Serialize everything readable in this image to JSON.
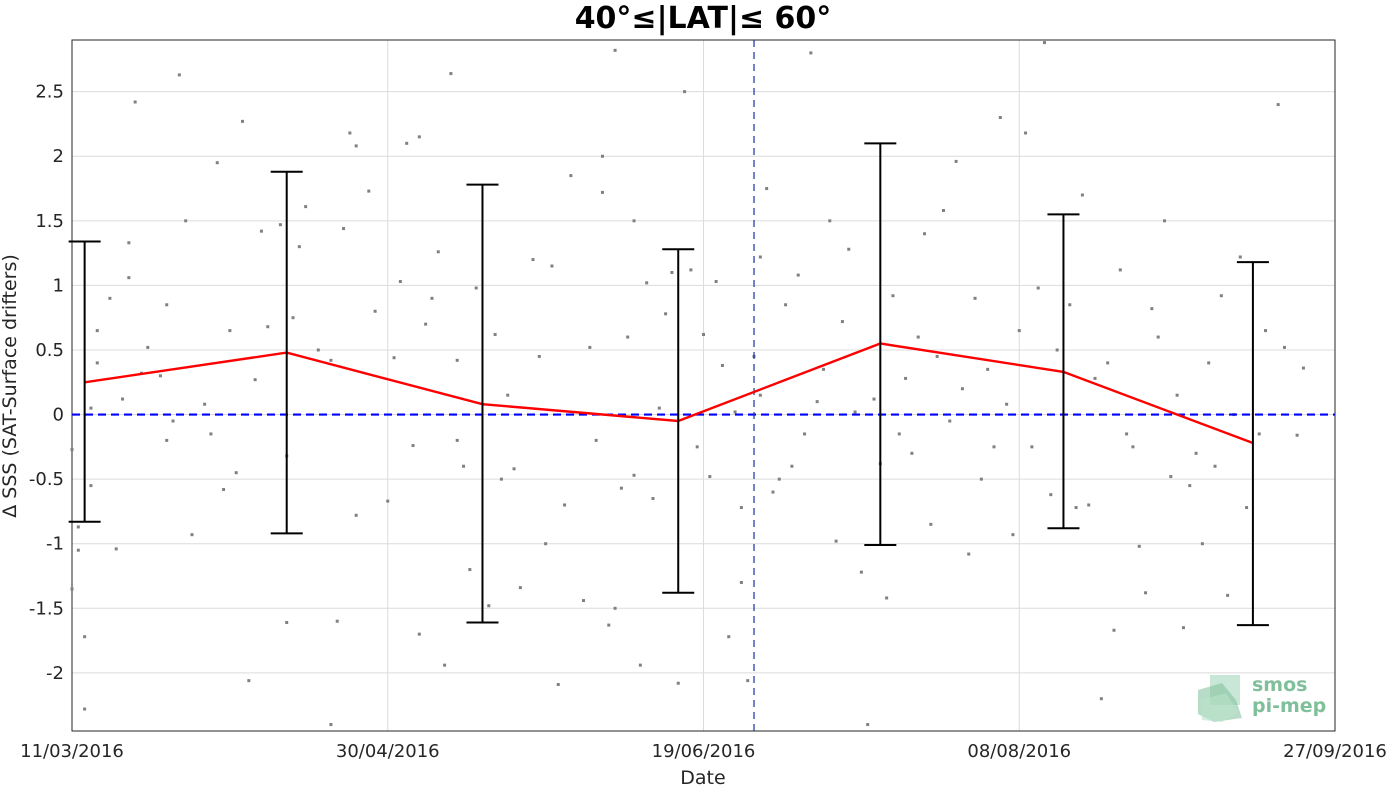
{
  "chart_data": {
    "type": "line",
    "title": "40°≤|LAT|≤ 60°",
    "xlabel": "Date",
    "ylabel": "Δ SSS (SAT-Surface drifters)",
    "xlim": [
      "2016-03-11",
      "2016-09-27"
    ],
    "ylim": [
      -2.45,
      2.9
    ],
    "x_ticks": [
      "11/03/2016",
      "30/04/2016",
      "19/06/2016",
      "08/08/2016",
      "27/09/2016"
    ],
    "y_ticks": [
      "-2",
      "-1.5",
      "-1",
      "-0.5",
      "0",
      "0.5",
      "1",
      "1.5",
      "2",
      "2.5"
    ],
    "grid": true,
    "series": [
      {
        "type": "line",
        "color": "#ff0000",
        "points": [
          {
            "x": "2016-03-13",
            "y": 0.25,
            "ylow": -0.83,
            "yhigh": 1.34
          },
          {
            "x": "2016-04-14",
            "y": 0.48,
            "ylow": -0.92,
            "yhigh": 1.88
          },
          {
            "x": "2016-05-15",
            "y": 0.08,
            "ylow": -1.61,
            "yhigh": 1.78
          },
          {
            "x": "2016-06-15",
            "y": -0.05,
            "ylow": -1.38,
            "yhigh": 1.28
          },
          {
            "x": "2016-07-17",
            "y": 0.55,
            "ylow": -1.01,
            "yhigh": 2.1
          },
          {
            "x": "2016-08-15",
            "y": 0.33,
            "ylow": -0.88,
            "yhigh": 1.55
          },
          {
            "x": "2016-09-14",
            "y": -0.22,
            "ylow": -1.63,
            "yhigh": 1.18
          }
        ]
      }
    ],
    "reference_line": {
      "y": 0,
      "color": "#0000ff",
      "style": "dashed"
    },
    "vertical_line": {
      "x": "2016-06-27",
      "color": "#1c2fa0",
      "style": "dashed"
    },
    "scatter": {
      "color": "#808080",
      "points": [
        {
          "x": "2016-03-11",
          "y": -0.27
        },
        {
          "x": "2016-03-11",
          "y": -1.35
        },
        {
          "x": "2016-03-12",
          "y": -0.87
        },
        {
          "x": "2016-03-12",
          "y": -1.05
        },
        {
          "x": "2016-03-13",
          "y": -2.28
        },
        {
          "x": "2016-03-13",
          "y": -1.72
        },
        {
          "x": "2016-03-14",
          "y": 0.05
        },
        {
          "x": "2016-03-14",
          "y": -0.55
        },
        {
          "x": "2016-03-15",
          "y": 0.4
        },
        {
          "x": "2016-03-15",
          "y": 0.65
        },
        {
          "x": "2016-03-17",
          "y": 0.9
        },
        {
          "x": "2016-03-18",
          "y": -1.04
        },
        {
          "x": "2016-03-19",
          "y": 0.12
        },
        {
          "x": "2016-03-20",
          "y": 1.06
        },
        {
          "x": "2016-03-20",
          "y": 1.33
        },
        {
          "x": "2016-03-21",
          "y": 2.42
        },
        {
          "x": "2016-03-22",
          "y": 0.32
        },
        {
          "x": "2016-03-23",
          "y": 0.52
        },
        {
          "x": "2016-03-25",
          "y": 0.3
        },
        {
          "x": "2016-03-26",
          "y": 0.85
        },
        {
          "x": "2016-03-26",
          "y": -0.2
        },
        {
          "x": "2016-03-27",
          "y": -0.05
        },
        {
          "x": "2016-03-28",
          "y": 2.63
        },
        {
          "x": "2016-03-29",
          "y": 1.5
        },
        {
          "x": "2016-03-30",
          "y": -0.93
        },
        {
          "x": "2016-04-01",
          "y": 0.08
        },
        {
          "x": "2016-04-02",
          "y": -0.15
        },
        {
          "x": "2016-04-03",
          "y": 1.95
        },
        {
          "x": "2016-04-04",
          "y": -0.58
        },
        {
          "x": "2016-04-05",
          "y": 0.65
        },
        {
          "x": "2016-04-06",
          "y": -0.45
        },
        {
          "x": "2016-04-07",
          "y": 2.27
        },
        {
          "x": "2016-04-08",
          "y": -2.06
        },
        {
          "x": "2016-04-09",
          "y": 0.27
        },
        {
          "x": "2016-04-10",
          "y": 1.42
        },
        {
          "x": "2016-04-11",
          "y": 0.68
        },
        {
          "x": "2016-04-13",
          "y": 1.47
        },
        {
          "x": "2016-04-14",
          "y": -1.61
        },
        {
          "x": "2016-04-14",
          "y": -0.32
        },
        {
          "x": "2016-04-15",
          "y": 0.75
        },
        {
          "x": "2016-04-16",
          "y": 1.3
        },
        {
          "x": "2016-04-17",
          "y": 1.61
        },
        {
          "x": "2016-04-19",
          "y": 0.5
        },
        {
          "x": "2016-04-21",
          "y": -2.4
        },
        {
          "x": "2016-04-21",
          "y": 0.42
        },
        {
          "x": "2016-04-22",
          "y": -1.6
        },
        {
          "x": "2016-04-23",
          "y": 1.44
        },
        {
          "x": "2016-04-24",
          "y": 2.18
        },
        {
          "x": "2016-04-25",
          "y": -0.78
        },
        {
          "x": "2016-04-25",
          "y": 2.08
        },
        {
          "x": "2016-04-27",
          "y": 1.73
        },
        {
          "x": "2016-04-28",
          "y": 0.8
        },
        {
          "x": "2016-04-30",
          "y": -0.67
        },
        {
          "x": "2016-05-01",
          "y": 0.44
        },
        {
          "x": "2016-05-02",
          "y": 1.03
        },
        {
          "x": "2016-05-03",
          "y": 2.1
        },
        {
          "x": "2016-05-04",
          "y": -0.24
        },
        {
          "x": "2016-05-05",
          "y": -1.7
        },
        {
          "x": "2016-05-05",
          "y": 2.15
        },
        {
          "x": "2016-05-06",
          "y": 0.7
        },
        {
          "x": "2016-05-07",
          "y": 0.9
        },
        {
          "x": "2016-05-08",
          "y": 1.26
        },
        {
          "x": "2016-05-09",
          "y": -1.94
        },
        {
          "x": "2016-05-10",
          "y": 2.64
        },
        {
          "x": "2016-05-11",
          "y": -0.2
        },
        {
          "x": "2016-05-11",
          "y": 0.42
        },
        {
          "x": "2016-05-12",
          "y": -0.4
        },
        {
          "x": "2016-05-13",
          "y": -1.2
        },
        {
          "x": "2016-05-14",
          "y": 0.98
        },
        {
          "x": "2016-05-16",
          "y": -1.48
        },
        {
          "x": "2016-05-17",
          "y": 0.62
        },
        {
          "x": "2016-05-18",
          "y": -0.5
        },
        {
          "x": "2016-05-19",
          "y": 0.15
        },
        {
          "x": "2016-05-20",
          "y": -0.42
        },
        {
          "x": "2016-05-21",
          "y": -1.34
        },
        {
          "x": "2016-05-23",
          "y": 1.2
        },
        {
          "x": "2016-05-24",
          "y": 0.45
        },
        {
          "x": "2016-05-25",
          "y": -1.0
        },
        {
          "x": "2016-05-26",
          "y": 1.15
        },
        {
          "x": "2016-05-27",
          "y": -2.09
        },
        {
          "x": "2016-05-28",
          "y": -0.7
        },
        {
          "x": "2016-05-29",
          "y": 1.85
        },
        {
          "x": "2016-05-31",
          "y": -1.44
        },
        {
          "x": "2016-06-01",
          "y": 0.52
        },
        {
          "x": "2016-06-02",
          "y": -0.2
        },
        {
          "x": "2016-06-03",
          "y": 2.0
        },
        {
          "x": "2016-06-03",
          "y": 1.72
        },
        {
          "x": "2016-06-04",
          "y": -1.63
        },
        {
          "x": "2016-06-05",
          "y": -1.5
        },
        {
          "x": "2016-06-05",
          "y": 2.82
        },
        {
          "x": "2016-06-06",
          "y": -0.57
        },
        {
          "x": "2016-06-07",
          "y": 0.6
        },
        {
          "x": "2016-06-08",
          "y": -0.47
        },
        {
          "x": "2016-06-08",
          "y": 1.5
        },
        {
          "x": "2016-06-09",
          "y": -1.94
        },
        {
          "x": "2016-06-10",
          "y": 1.02
        },
        {
          "x": "2016-06-11",
          "y": -0.65
        },
        {
          "x": "2016-06-12",
          "y": 0.05
        },
        {
          "x": "2016-06-13",
          "y": 0.78
        },
        {
          "x": "2016-06-14",
          "y": 1.1
        },
        {
          "x": "2016-06-15",
          "y": -2.08
        },
        {
          "x": "2016-06-16",
          "y": 2.5
        },
        {
          "x": "2016-06-17",
          "y": 1.12
        },
        {
          "x": "2016-06-18",
          "y": -0.25
        },
        {
          "x": "2016-06-19",
          "y": 0.62
        },
        {
          "x": "2016-06-20",
          "y": -0.48
        },
        {
          "x": "2016-06-21",
          "y": 1.03
        },
        {
          "x": "2016-06-22",
          "y": 0.38
        },
        {
          "x": "2016-06-23",
          "y": -1.72
        },
        {
          "x": "2016-06-24",
          "y": 0.02
        },
        {
          "x": "2016-06-25",
          "y": -1.3
        },
        {
          "x": "2016-06-25",
          "y": -0.72
        },
        {
          "x": "2016-06-26",
          "y": -2.06
        },
        {
          "x": "2016-06-27",
          "y": 0.45
        },
        {
          "x": "2016-06-28",
          "y": 1.22
        },
        {
          "x": "2016-06-28",
          "y": 0.15
        },
        {
          "x": "2016-06-29",
          "y": 1.75
        },
        {
          "x": "2016-06-30",
          "y": -0.6
        },
        {
          "x": "2016-07-01",
          "y": -0.5
        },
        {
          "x": "2016-07-02",
          "y": 0.85
        },
        {
          "x": "2016-07-03",
          "y": -0.4
        },
        {
          "x": "2016-07-04",
          "y": 1.08
        },
        {
          "x": "2016-07-05",
          "y": -0.15
        },
        {
          "x": "2016-07-06",
          "y": 2.8
        },
        {
          "x": "2016-07-07",
          "y": 0.1
        },
        {
          "x": "2016-07-08",
          "y": 0.35
        },
        {
          "x": "2016-07-09",
          "y": 1.5
        },
        {
          "x": "2016-07-10",
          "y": -0.98
        },
        {
          "x": "2016-07-11",
          "y": 0.72
        },
        {
          "x": "2016-07-12",
          "y": 1.28
        },
        {
          "x": "2016-07-13",
          "y": 0.02
        },
        {
          "x": "2016-07-14",
          "y": -1.22
        },
        {
          "x": "2016-07-15",
          "y": -2.4
        },
        {
          "x": "2016-07-16",
          "y": 0.12
        },
        {
          "x": "2016-07-17",
          "y": -0.38
        },
        {
          "x": "2016-07-18",
          "y": -1.42
        },
        {
          "x": "2016-07-19",
          "y": 0.92
        },
        {
          "x": "2016-07-20",
          "y": -0.15
        },
        {
          "x": "2016-07-21",
          "y": 0.28
        },
        {
          "x": "2016-07-22",
          "y": -0.3
        },
        {
          "x": "2016-07-23",
          "y": 0.6
        },
        {
          "x": "2016-07-24",
          "y": 1.4
        },
        {
          "x": "2016-07-25",
          "y": -0.85
        },
        {
          "x": "2016-07-26",
          "y": 0.45
        },
        {
          "x": "2016-07-27",
          "y": 1.58
        },
        {
          "x": "2016-07-28",
          "y": -0.05
        },
        {
          "x": "2016-07-29",
          "y": 1.96
        },
        {
          "x": "2016-07-30",
          "y": 0.2
        },
        {
          "x": "2016-07-31",
          "y": -1.08
        },
        {
          "x": "2016-08-01",
          "y": 0.9
        },
        {
          "x": "2016-08-02",
          "y": -0.5
        },
        {
          "x": "2016-08-03",
          "y": 0.35
        },
        {
          "x": "2016-08-04",
          "y": -0.25
        },
        {
          "x": "2016-08-05",
          "y": 2.3
        },
        {
          "x": "2016-08-06",
          "y": 0.08
        },
        {
          "x": "2016-08-07",
          "y": -0.93
        },
        {
          "x": "2016-08-08",
          "y": 0.65
        },
        {
          "x": "2016-08-09",
          "y": 2.18
        },
        {
          "x": "2016-08-10",
          "y": -0.25
        },
        {
          "x": "2016-08-11",
          "y": 0.98
        },
        {
          "x": "2016-08-12",
          "y": 2.88
        },
        {
          "x": "2016-08-13",
          "y": -0.62
        },
        {
          "x": "2016-08-14",
          "y": 0.5
        },
        {
          "x": "2016-08-16",
          "y": 0.85
        },
        {
          "x": "2016-08-17",
          "y": -0.72
        },
        {
          "x": "2016-08-18",
          "y": 1.7
        },
        {
          "x": "2016-08-19",
          "y": -0.7
        },
        {
          "x": "2016-08-20",
          "y": 0.28
        },
        {
          "x": "2016-08-21",
          "y": -2.2
        },
        {
          "x": "2016-08-22",
          "y": 0.4
        },
        {
          "x": "2016-08-23",
          "y": -1.67
        },
        {
          "x": "2016-08-24",
          "y": 1.12
        },
        {
          "x": "2016-08-25",
          "y": -0.15
        },
        {
          "x": "2016-08-26",
          "y": -0.25
        },
        {
          "x": "2016-08-27",
          "y": -1.02
        },
        {
          "x": "2016-08-28",
          "y": -1.38
        },
        {
          "x": "2016-08-29",
          "y": 0.82
        },
        {
          "x": "2016-08-30",
          "y": 0.6
        },
        {
          "x": "2016-08-31",
          "y": 1.5
        },
        {
          "x": "2016-09-01",
          "y": -0.48
        },
        {
          "x": "2016-09-02",
          "y": 0.15
        },
        {
          "x": "2016-09-03",
          "y": -1.65
        },
        {
          "x": "2016-09-04",
          "y": -0.55
        },
        {
          "x": "2016-09-05",
          "y": -0.3
        },
        {
          "x": "2016-09-06",
          "y": -1.0
        },
        {
          "x": "2016-09-07",
          "y": 0.4
        },
        {
          "x": "2016-09-08",
          "y": -0.4
        },
        {
          "x": "2016-09-09",
          "y": 0.92
        },
        {
          "x": "2016-09-10",
          "y": -1.4
        },
        {
          "x": "2016-09-11",
          "y": 0.0
        },
        {
          "x": "2016-09-12",
          "y": 1.22
        },
        {
          "x": "2016-09-13",
          "y": -0.72
        },
        {
          "x": "2016-09-15",
          "y": -0.15
        },
        {
          "x": "2016-09-16",
          "y": 0.65
        },
        {
          "x": "2016-09-18",
          "y": 2.4
        },
        {
          "x": "2016-09-19",
          "y": 0.52
        },
        {
          "x": "2016-09-21",
          "y": -0.16
        },
        {
          "x": "2016-09-22",
          "y": 0.36
        }
      ]
    }
  },
  "logo": {
    "line1": "smos",
    "line2": "pi-mep"
  }
}
